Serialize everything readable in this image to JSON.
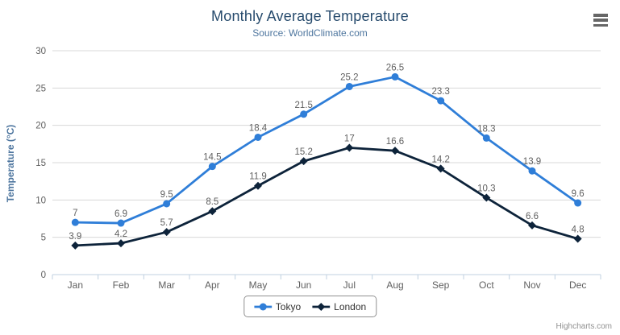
{
  "header": {
    "title": "Monthly Average Temperature",
    "subtitle": "Source: WorldClimate.com"
  },
  "credits": {
    "text": "Highcharts.com"
  },
  "context_menu": {
    "icon": "hamburger-icon"
  },
  "colors": {
    "title": "#274b6d",
    "subtitle": "#4d759e",
    "axis_title": "#4d759e",
    "tick_label": "#606060",
    "data_label": "#606060",
    "grid": "#d8d8d8",
    "axis_line": "#c0d0e0",
    "legend_border": "#909090",
    "legend_text": "#333333",
    "credits": "#909090"
  },
  "chart_data": {
    "type": "line",
    "title": "Monthly Average Temperature",
    "subtitle": "Source: WorldClimate.com",
    "categories": [
      "Jan",
      "Feb",
      "Mar",
      "Apr",
      "May",
      "Jun",
      "Jul",
      "Aug",
      "Sep",
      "Oct",
      "Nov",
      "Dec"
    ],
    "series": [
      {
        "name": "Tokyo",
        "color": "#2f7ed8",
        "marker": "circle",
        "values": [
          7,
          6.9,
          9.5,
          14.5,
          18.4,
          21.5,
          25.2,
          26.5,
          23.3,
          18.3,
          13.9,
          9.6
        ]
      },
      {
        "name": "London",
        "color": "#0d233a",
        "marker": "diamond",
        "values": [
          3.9,
          4.2,
          5.7,
          8.5,
          11.9,
          15.2,
          17,
          16.6,
          14.2,
          10.3,
          6.6,
          4.8
        ]
      }
    ],
    "xlabel": "",
    "ylabel": "Temperature (°C)",
    "ylim": [
      0,
      30
    ],
    "yticks": [
      0,
      5,
      10,
      15,
      20,
      25,
      30
    ],
    "grid": true,
    "data_labels": true,
    "legend_position": "bottom-center"
  }
}
